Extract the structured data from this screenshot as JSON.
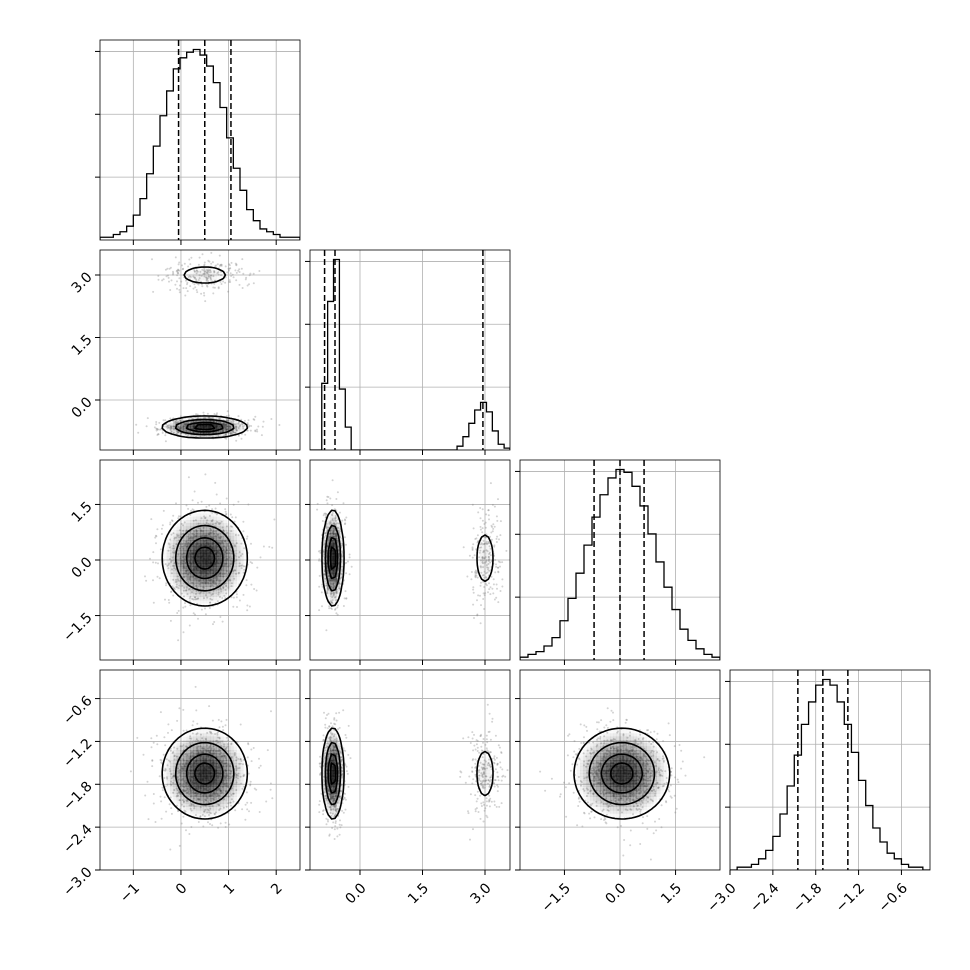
{
  "chart_data": {
    "type": "corner",
    "parameters": [
      {
        "range": [
          -1.7,
          2.5
        ],
        "ticks": [
          -1,
          0,
          1,
          2
        ],
        "tick_labels": [
          "−1",
          "0",
          "1",
          "2"
        ],
        "quantiles": [
          -0.05,
          0.5,
          1.05
        ],
        "histogram": [
          1,
          1,
          2,
          3,
          5,
          9,
          15,
          24,
          34,
          45,
          54,
          62,
          66,
          68,
          69,
          67,
          63,
          57,
          48,
          37,
          26,
          18,
          11,
          7,
          4,
          3,
          2,
          1,
          1,
          1
        ],
        "modes": [
          {
            "mu": 0.5,
            "sd": 0.45,
            "w": 1
          }
        ]
      },
      {
        "range": [
          -1.2,
          3.6
        ],
        "ticks": [
          0.0,
          1.5,
          3.0
        ],
        "tick_labels": [
          "0.0",
          "1.5",
          "3.0"
        ],
        "quantiles": [
          -0.85,
          -0.6,
          2.95
        ],
        "histogram": [
          0,
          0,
          0.35,
          0.78,
          1.0,
          0.32,
          0.12,
          0,
          0,
          0,
          0,
          0,
          0,
          0,
          0,
          0,
          0,
          0,
          0,
          0,
          0,
          0,
          0,
          0,
          0,
          0.02,
          0.07,
          0.14,
          0.21,
          0.25,
          0.2,
          0.1,
          0.03,
          0.01
        ],
        "modes": [
          {
            "mu": -0.65,
            "sd": 0.13,
            "w": 0.75
          },
          {
            "mu": 3.0,
            "sd": 0.2,
            "w": 0.25
          }
        ]
      },
      {
        "range": [
          -2.7,
          2.7
        ],
        "ticks": [
          -1.5,
          0.0,
          1.5
        ],
        "tick_labels": [
          "−1.5",
          "0.0",
          "1.5"
        ],
        "quantiles": [
          -0.7,
          0.0,
          0.65
        ],
        "histogram": [
          1,
          2,
          3,
          5,
          8,
          14,
          22,
          31,
          41,
          51,
          59,
          65,
          68,
          67,
          62,
          55,
          45,
          35,
          26,
          18,
          11,
          7,
          4,
          2,
          1
        ],
        "modes": [
          {
            "mu": 0.05,
            "sd": 0.65,
            "w": 1
          }
        ]
      },
      {
        "range": [
          -3.0,
          -0.2
        ],
        "ticks": [
          -3.0,
          -2.4,
          -1.8,
          -1.2,
          -0.6
        ],
        "tick_labels": [
          "−3.0",
          "−2.4",
          "−1.8",
          "−1.2",
          "−0.6"
        ],
        "quantiles": [
          -2.05,
          -1.7,
          -1.35
        ],
        "histogram": [
          0,
          1,
          1,
          2,
          4,
          7,
          12,
          20,
          30,
          41,
          52,
          60,
          66,
          68,
          66,
          60,
          52,
          42,
          32,
          23,
          15,
          10,
          6,
          4,
          2,
          1,
          1,
          0
        ],
        "modes": [
          {
            "mu": -1.65,
            "sd": 0.32,
            "w": 1
          }
        ]
      }
    ],
    "ylabels_shown": [
      {
        "row": 1,
        "param": 1
      },
      {
        "row": 2,
        "param": 2
      },
      {
        "row": 3,
        "param": 3
      }
    ],
    "xlabels_shown": [
      0,
      1,
      2,
      3
    ],
    "scatter_points_per_panel": 900,
    "contour_levels": 4,
    "colors": {
      "line": "#000000",
      "grid": "#b0b0b0",
      "points": "#808080",
      "fill_dark": "#000000"
    },
    "grid": true
  }
}
